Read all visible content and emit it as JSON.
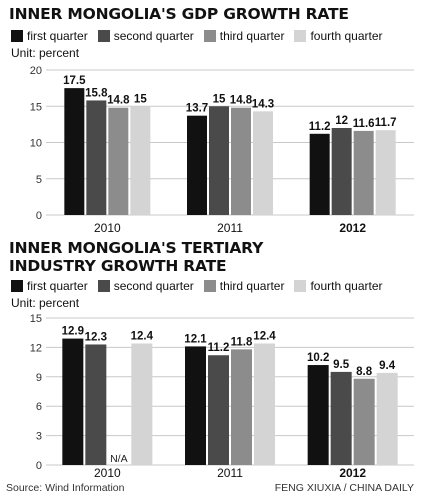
{
  "legend_colors": [
    "#111111",
    "#4a4a4a",
    "#8c8c8c",
    "#d4d4d4"
  ],
  "source": "Source: Wind Information",
  "credit": "FENG XIUXIA / CHINA DAILY",
  "chart_data": [
    {
      "type": "bar",
      "title": "INNER MONGOLIA'S GDP GROWTH RATE",
      "unit": "Unit: percent",
      "categories": [
        "2010",
        "2011",
        "2012"
      ],
      "category_bold": [
        false,
        false,
        true
      ],
      "series": [
        {
          "name": "first quarter",
          "values": [
            17.5,
            13.7,
            11.2
          ]
        },
        {
          "name": "second quarter",
          "values": [
            15.8,
            15,
            12
          ]
        },
        {
          "name": "third quarter",
          "values": [
            14.8,
            14.8,
            11.6
          ]
        },
        {
          "name": "fourth quarter",
          "values": [
            15,
            14.3,
            11.7
          ]
        }
      ],
      "value_labels": [
        [
          "17.5",
          "13.7",
          "11.2"
        ],
        [
          "15.8",
          "15",
          "12"
        ],
        [
          "14.8",
          "14.8",
          "11.6"
        ],
        [
          "15",
          "14.3",
          "11.7"
        ]
      ],
      "ylim": [
        0,
        20
      ],
      "yticks": [
        0,
        5,
        10,
        15,
        20
      ],
      "grid": true,
      "legend": "top"
    },
    {
      "type": "bar",
      "title": "INNER MONGOLIA'S TERTIARY INDUSTRY GROWTH RATE",
      "unit": "Unit: percent",
      "categories": [
        "2010",
        "2011",
        "2012"
      ],
      "category_bold": [
        false,
        false,
        true
      ],
      "series": [
        {
          "name": "first quarter",
          "values": [
            12.9,
            12.1,
            10.2
          ]
        },
        {
          "name": "second quarter",
          "values": [
            12.3,
            11.2,
            9.5
          ]
        },
        {
          "name": "third quarter",
          "values": [
            null,
            11.8,
            8.8
          ]
        },
        {
          "name": "fourth quarter",
          "values": [
            12.4,
            12.4,
            9.4
          ]
        }
      ],
      "value_labels": [
        [
          "12.9",
          "12.1",
          "10.2"
        ],
        [
          "12.3",
          "11.2",
          "9.5"
        ],
        [
          "N/A",
          "11.8",
          "8.8"
        ],
        [
          "12.4",
          "12.4",
          "9.4"
        ]
      ],
      "ylim": [
        0,
        15
      ],
      "yticks": [
        0,
        3,
        6,
        9,
        12,
        15
      ],
      "grid": true,
      "legend": "top"
    }
  ]
}
